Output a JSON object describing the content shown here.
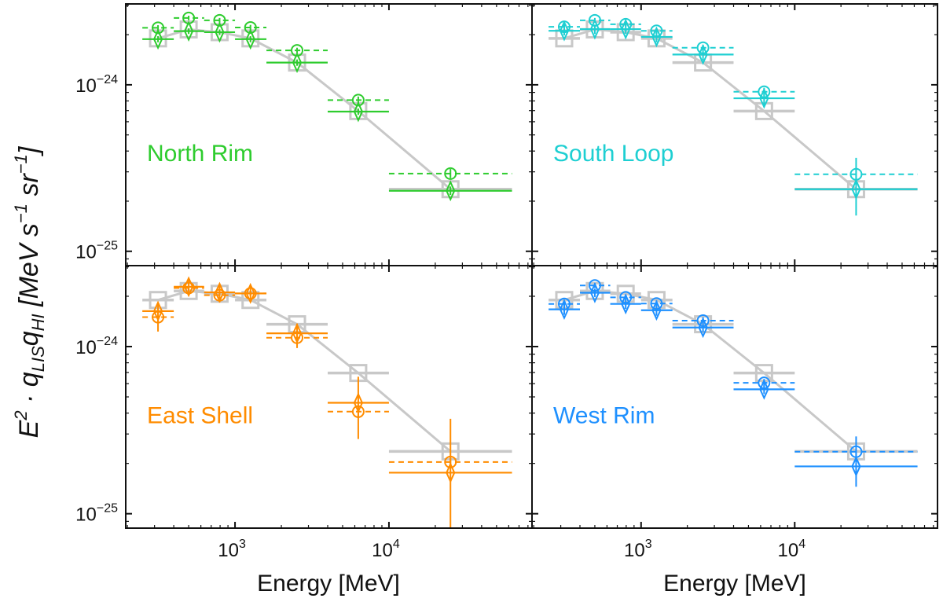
{
  "chart_data": {
    "type": "scatter",
    "layout": "2x2 grid",
    "xlabel": "Energy [MeV]",
    "ylabel": {
      "base": "E",
      "power": "2",
      "middle": " · q",
      "sub1": "LIS",
      "q2": "q",
      "sub2": "HI",
      "units_open": " [MeV s",
      "u1": "−1",
      "units_mid": " sr",
      "u2": "−1",
      "units_close": "]"
    },
    "xscale": "log",
    "yscale": "log",
    "xlim": [
      195,
      85000
    ],
    "ylim_top_row": [
      8.2e-26,
      3.06e-24
    ],
    "ylim_bottom_row": [
      8.2e-26,
      3.05e-24
    ],
    "x_ticks": [
      {
        "value": 1000,
        "base": "10",
        "exp": "3"
      },
      {
        "value": 10000,
        "base": "10",
        "exp": "4"
      }
    ],
    "y_ticks": [
      {
        "value": 1e-24,
        "base": "10",
        "exp": "−24"
      },
      {
        "value": 1e-25,
        "base": "10",
        "exp": "−25"
      }
    ],
    "energy_bins": [
      {
        "lo": 250,
        "hi": 400,
        "center": 316
      },
      {
        "lo": 400,
        "hi": 630,
        "center": 500
      },
      {
        "lo": 630,
        "hi": 1000,
        "center": 794
      },
      {
        "lo": 1000,
        "hi": 1600,
        "center": 1260
      },
      {
        "lo": 1600,
        "hi": 4000,
        "center": 2530
      },
      {
        "lo": 4000,
        "hi": 10000,
        "center": 6320
      },
      {
        "lo": 10000,
        "hi": 63000,
        "center": 25100
      }
    ],
    "reference_series": {
      "name": "reference (LIS model)",
      "color": "#c8c8c8",
      "marker": "square",
      "values": [
        1.9e-24,
        2.15e-24,
        2.07e-24,
        1.9e-24,
        1.36e-24,
        6.95e-25,
        2.36e-25
      ]
    },
    "panels": [
      {
        "label": "North Rim",
        "position": "top-left",
        "color": "#2ecc2e",
        "solid": {
          "marker": "diamond",
          "values": [
            1.88e-24,
            2.1e-24,
            2.07e-24,
            1.88e-24,
            1.36e-24,
            6.9e-25,
            2.31e-25
          ],
          "err_lo": [
            1.8e-24,
            2.02e-24,
            1.99e-24,
            1.8e-24,
            1.3e-24,
            6.6e-25,
            2.18e-25
          ],
          "err_hi": [
            1.96e-24,
            2.18e-24,
            2.15e-24,
            1.96e-24,
            1.42e-24,
            7.2e-25,
            2.45e-25
          ]
        },
        "dashed": {
          "marker": "circle",
          "values": [
            2.2e-24,
            2.52e-24,
            2.44e-24,
            2.21e-24,
            1.61e-24,
            8.09e-25,
            2.93e-25
          ],
          "err_lo": [
            2.12e-24,
            2.44e-24,
            2.36e-24,
            2.13e-24,
            1.55e-24,
            7.7e-25,
            2.75e-25
          ],
          "err_hi": [
            2.28e-24,
            2.6e-24,
            2.52e-24,
            2.29e-24,
            1.67e-24,
            8.5e-25,
            3.12e-25
          ]
        },
        "show_reference_bars": false
      },
      {
        "label": "South Loop",
        "position": "top-right",
        "color": "#1ecfd2",
        "solid": {
          "marker": "diamond",
          "values": [
            2.11e-24,
            2.16e-24,
            2.16e-24,
            1.94e-24,
            1.52e-24,
            8.3e-25,
            2.36e-25
          ],
          "err_lo": [
            1.98e-24,
            2.02e-24,
            2.02e-24,
            1.8e-24,
            1.4e-24,
            7.5e-25,
            1.64e-25
          ],
          "err_hi": [
            2.26e-24,
            2.3e-24,
            2.3e-24,
            2.08e-24,
            1.64e-24,
            9.3e-25,
            3.64e-25
          ]
        },
        "dashed": {
          "marker": "circle",
          "values": [
            2.23e-24,
            2.44e-24,
            2.31e-24,
            2.11e-24,
            1.67e-24,
            9.08e-25,
            2.9e-25
          ],
          "err_lo": [
            2.15e-24,
            2.36e-24,
            2.23e-24,
            2.03e-24,
            1.6e-24,
            8.6e-25,
            2.7e-25
          ],
          "err_hi": [
            2.31e-24,
            2.52e-24,
            2.39e-24,
            2.19e-24,
            1.74e-24,
            9.6e-25,
            3.1e-25
          ]
        },
        "show_reference_bars": true
      },
      {
        "label": "East Shell",
        "position": "bottom-left",
        "color": "#ff8c00",
        "solid": {
          "marker": "diamond",
          "values": [
            1.63e-24,
            2.28e-24,
            2.11e-24,
            2.08e-24,
            1.2e-24,
            4.61e-25,
            1.76e-25
          ],
          "err_lo": [
            1.23e-24,
            2.08e-24,
            1.84e-24,
            1.9e-24,
            9.8e-25,
            2.8e-25,
            8.2e-26
          ],
          "err_hi": [
            1.84e-24,
            2.51e-24,
            2.33e-24,
            2.3e-24,
            1.37e-24,
            6.6e-25,
            3.7e-25
          ]
        },
        "dashed": {
          "marker": "circle",
          "values": [
            1.5e-24,
            2.24e-24,
            2.03e-24,
            2.08e-24,
            1.13e-24,
            4.08e-25,
            2.04e-25
          ],
          "err_lo": [
            1.4e-24,
            2.16e-24,
            1.95e-24,
            2e-24,
            1.06e-24,
            3.8e-25,
            1.9e-25
          ],
          "err_hi": [
            1.6e-24,
            2.32e-24,
            2.11e-24,
            2.16e-24,
            1.2e-24,
            4.4e-25,
            2.2e-25
          ]
        },
        "show_reference_bars": true
      },
      {
        "label": "West Rim",
        "position": "bottom-right",
        "color": "#1e90ff",
        "solid": {
          "marker": "diamond",
          "values": [
            1.67e-24,
            2.1e-24,
            1.8e-24,
            1.65e-24,
            1.3e-24,
            5.55e-25,
            1.92e-25
          ],
          "err_lo": [
            1.55e-24,
            1.98e-24,
            1.68e-24,
            1.53e-24,
            1.22e-24,
            5.2e-25,
            1.45e-25
          ],
          "err_hi": [
            1.8e-24,
            2.22e-24,
            1.92e-24,
            1.77e-24,
            1.38e-24,
            5.9e-25,
            2.4e-25
          ]
        },
        "dashed": {
          "marker": "circle",
          "values": [
            1.8e-24,
            2.32e-24,
            1.97e-24,
            1.81e-24,
            1.43e-24,
            6.07e-25,
            2.35e-25
          ],
          "err_lo": [
            1.72e-24,
            2.24e-24,
            1.89e-24,
            1.73e-24,
            1.36e-24,
            5.75e-25,
            2.05e-25
          ],
          "err_hi": [
            1.88e-24,
            2.4e-24,
            2.05e-24,
            1.89e-24,
            1.5e-24,
            6.4e-25,
            2.9e-25
          ]
        },
        "show_reference_bars": true
      }
    ]
  }
}
